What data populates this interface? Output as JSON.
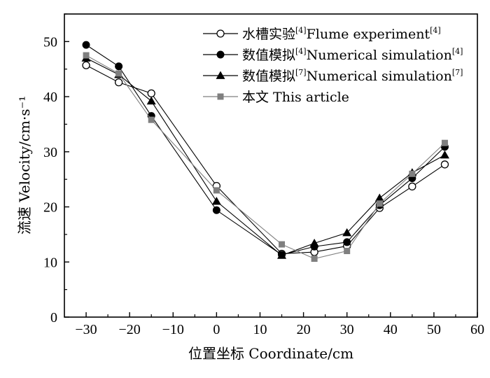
{
  "chart_data": {
    "type": "line",
    "xlabel": "位置坐标 Coordinate/cm",
    "ylabel": "流速 Velocity/cm·s⁻¹",
    "xlim": [
      -35,
      60
    ],
    "ylim": [
      0,
      55
    ],
    "xticks": [
      -30,
      -20,
      -10,
      0,
      10,
      20,
      30,
      40,
      50,
      60
    ],
    "yticks": [
      0,
      10,
      20,
      30,
      40,
      50
    ],
    "xtick_labels": [
      "−30",
      "−20",
      "−10",
      "0",
      "10",
      "20",
      "30",
      "40",
      "50",
      "60"
    ],
    "ytick_labels": [
      "0",
      "10",
      "20",
      "30",
      "40",
      "50"
    ],
    "grid": false,
    "legend_position": "top-right",
    "series": [
      {
        "name": "水槽实验[4]Flume experiment[4]",
        "name_parts": {
          "a": "水槽实验",
          "a_sup": "[4]",
          "b": "Flume experiment",
          "b_sup": "[4]"
        },
        "marker": "open-circle",
        "color": "#000000",
        "x": [
          -30,
          -22.5,
          -15,
          0,
          15,
          22.5,
          30,
          37.5,
          45,
          52.5
        ],
        "y": [
          45.7,
          42.6,
          40.6,
          23.8,
          11.5,
          11.8,
          12.9,
          19.8,
          23.7,
          27.7
        ]
      },
      {
        "name": "数值模拟[4]Numerical simulation[4]",
        "name_parts": {
          "a": "数值模拟",
          "a_sup": "[4]",
          "b": "Numerical simulation",
          "b_sup": "[4]"
        },
        "marker": "filled-circle",
        "color": "#000000",
        "x": [
          -30,
          -22.5,
          -15,
          0,
          15,
          22.5,
          30,
          37.5,
          45,
          52.5
        ],
        "y": [
          49.4,
          45.5,
          36.5,
          19.4,
          11.3,
          12.8,
          13.6,
          20.3,
          25.2,
          30.9
        ]
      },
      {
        "name": "数值模拟[7]Numerical simulation[7]",
        "name_parts": {
          "a": "数值模拟",
          "a_sup": "[7]",
          "b": "Numerical simulation",
          "b_sup": "[7]"
        },
        "marker": "filled-triangle",
        "color": "#000000",
        "x": [
          -30,
          -22.5,
          -15,
          0,
          15,
          22.5,
          30,
          37.5,
          45,
          52.5
        ],
        "y": [
          47.0,
          44.0,
          39.2,
          21.0,
          11.2,
          13.4,
          15.3,
          21.6,
          26.2,
          29.4
        ]
      },
      {
        "name": "本文 This article",
        "name_parts": {
          "a": "本文 This article",
          "a_sup": "",
          "b": "",
          "b_sup": ""
        },
        "marker": "filled-square",
        "color": "#7f7f7f",
        "x": [
          -30,
          -22.5,
          -15,
          0,
          15,
          22.5,
          30,
          37.5,
          45,
          52.5
        ],
        "y": [
          47.5,
          44.2,
          35.8,
          23.0,
          13.2,
          10.6,
          12.0,
          20.6,
          26.0,
          31.6
        ]
      }
    ]
  }
}
